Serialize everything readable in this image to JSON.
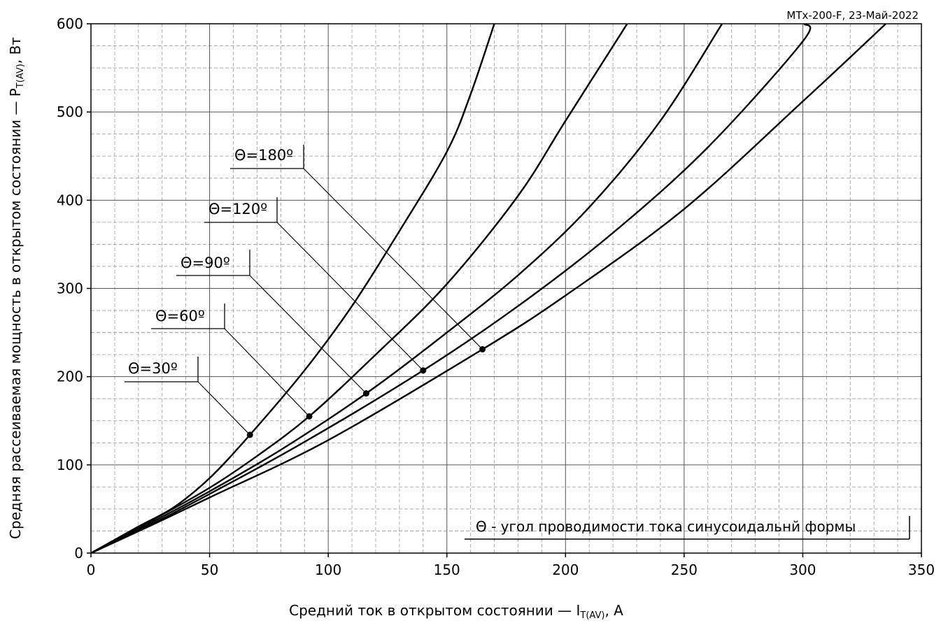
{
  "header": {
    "note": "MTx-200-F, 23-Май-2022"
  },
  "chart_data": {
    "type": "line",
    "xlim": [
      0,
      350
    ],
    "ylim": [
      0,
      600
    ],
    "x_ticks": [
      0,
      50,
      100,
      150,
      200,
      250,
      300,
      350
    ],
    "y_ticks": [
      0,
      100,
      200,
      300,
      400,
      500,
      600
    ],
    "grid": true,
    "xlabel": {
      "main": "Средний ток в открытом состоянии — I",
      "sub": "T(AV)",
      "tail": ", A"
    },
    "ylabel": {
      "main": "Средняя рассеиваемая мощность в открытом состоянии — P",
      "sub": "T(AV)",
      "tail": ", Вт"
    },
    "note": "Θ - угол проводимости тока синусоидальнй формы",
    "series": [
      {
        "name": "Θ=30º",
        "points": [
          [
            0,
            0
          ],
          [
            20,
            30
          ],
          [
            35,
            52
          ],
          [
            50,
            85
          ],
          [
            67,
            134
          ],
          [
            90,
            207
          ],
          [
            110,
            280
          ],
          [
            130,
            365
          ],
          [
            150,
            455
          ],
          [
            160,
            520
          ],
          [
            170,
            600
          ]
        ],
        "marker": [
          67,
          134
        ]
      },
      {
        "name": "Θ=60º",
        "points": [
          [
            0,
            0
          ],
          [
            25,
            36
          ],
          [
            50,
            74
          ],
          [
            70,
            110
          ],
          [
            92,
            155
          ],
          [
            120,
            225
          ],
          [
            150,
            305
          ],
          [
            180,
            405
          ],
          [
            200,
            490
          ],
          [
            226,
            600
          ]
        ],
        "marker": [
          92,
          155
        ]
      },
      {
        "name": "Θ=90º",
        "points": [
          [
            0,
            0
          ],
          [
            25,
            34
          ],
          [
            50,
            70
          ],
          [
            80,
            117
          ],
          [
            116,
            181
          ],
          [
            150,
            250
          ],
          [
            180,
            315
          ],
          [
            210,
            392
          ],
          [
            240,
            490
          ],
          [
            266,
            600
          ]
        ],
        "marker": [
          116,
          181
        ]
      },
      {
        "name": "Θ=120º",
        "points": [
          [
            0,
            0
          ],
          [
            25,
            32
          ],
          [
            50,
            67
          ],
          [
            90,
            126
          ],
          [
            140,
            207
          ],
          [
            180,
            280
          ],
          [
            220,
            363
          ],
          [
            260,
            460
          ],
          [
            300,
            580
          ],
          [
            300.7,
            600
          ]
        ],
        "marker": [
          140,
          207
        ]
      },
      {
        "name": "Θ=180º",
        "points": [
          [
            0,
            0
          ],
          [
            25,
            31
          ],
          [
            50,
            63
          ],
          [
            100,
            128
          ],
          [
            165,
            231
          ],
          [
            200,
            292
          ],
          [
            250,
            390
          ],
          [
            300,
            512
          ],
          [
            335,
            600
          ]
        ],
        "marker": [
          165,
          231
        ]
      }
    ]
  }
}
